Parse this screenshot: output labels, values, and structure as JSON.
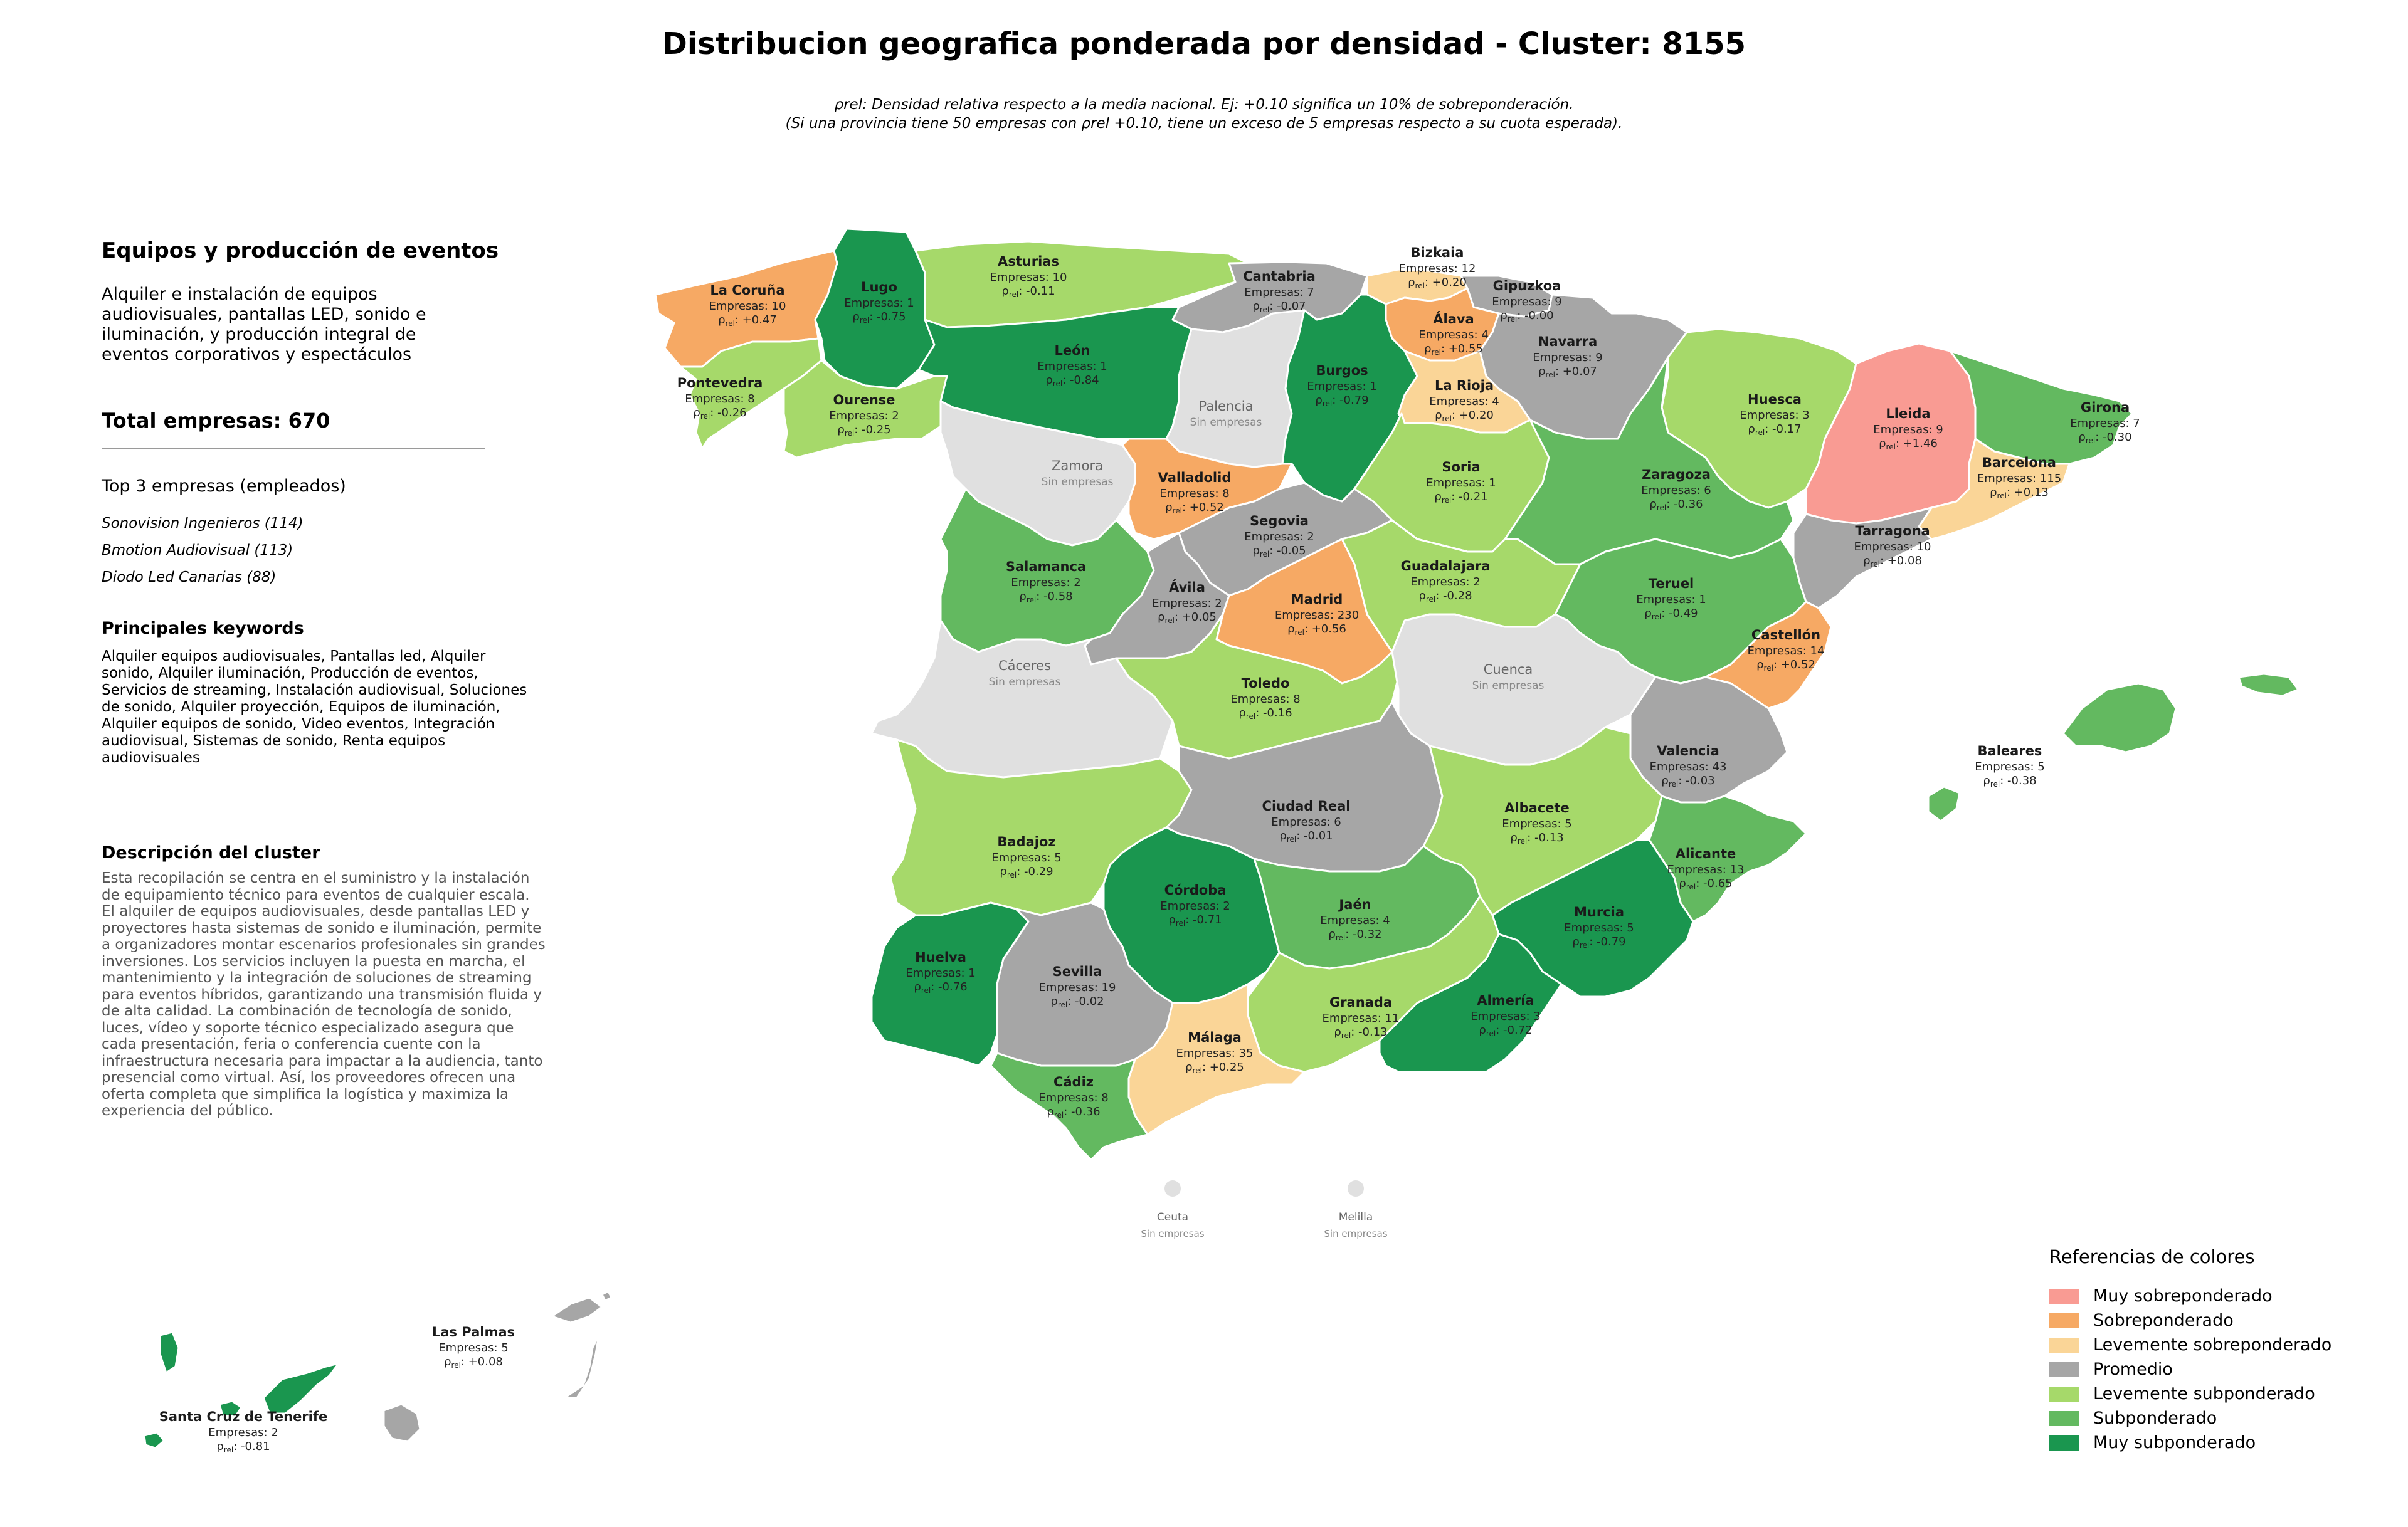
{
  "title": "Distribucion geografica ponderada por densidad - Cluster: 8155",
  "subtitle": {
    "line1": "ρrel: Densidad relativa respecto a la media nacional. Ej: +0.10 significa un 10% de sobreponderación.",
    "line2": "(Si una provincia tiene 50 empresas con ρrel +0.10, tiene un exceso de 5 empresas respecto a su cuota esperada)."
  },
  "panel": {
    "cluster_name": "Equipos y producción de eventos",
    "cluster_summary": "Alquiler e instalación de equipos audiovisuales, pantallas LED, sonido e iluminación, y producción integral de eventos corporativos y espectáculos",
    "total_label": "Total empresas: 670",
    "top_title": "Top 3 empresas (empleados)",
    "top_companies": [
      "Sonovision Ingenieros (114)",
      "Bmotion Audiovisual (113)",
      "Diodo Led Canarias (88)"
    ],
    "keywords_title": "Principales keywords",
    "keywords": "Alquiler equipos audiovisuales, Pantallas led, Alquiler sonido, Alquiler iluminación, Producción de eventos, Servicios de streaming, Instalación audiovisual, Soluciones de sonido, Alquiler proyección, Equipos de iluminación, Alquiler equipos de sonido, Video eventos, Integración audiovisual, Sistemas de sonido, Renta equipos audiovisuales",
    "description_title": "Descripción del cluster",
    "description": "Esta recopilación se centra en el suministro y la instalación de equipamiento técnico para eventos de cualquier escala. El alquiler de equipos audiovisuales, desde pantallas LED y proyectores hasta sistemas de sonido e iluminación, permite a organizadores montar escenarios profesionales sin grandes inversiones. Los servicios incluyen la puesta en marcha, el mantenimiento y la integración de soluciones de streaming para eventos híbridos, garantizando una transmisión fluida y de alta calidad. La combinación de tecnología de sonido, luces, vídeo y soporte técnico especializado asegura que cada presentación, feria o conferencia cuente con la infraestructura necesaria para impactar a la audiencia, tanto presencial como virtual. Así, los proveedores ofrecen una oferta completa que simplifica la logística y maximiza la experiencia del público."
  },
  "colors": {
    "muy_sobre": "#f99b93",
    "sobre": "#f6a964",
    "lev_sobre": "#fad597",
    "promedio": "#a6a6a6",
    "lev_sub": "#a6d96a",
    "sub": "#63b960",
    "muy_sub": "#1a964f",
    "sin_datos": "#e0e0e0"
  },
  "legend": {
    "title": "Referencias de colores",
    "items": [
      {
        "label": "Muy sobreponderado",
        "key": "muy_sobre"
      },
      {
        "label": "Sobreponderado",
        "key": "sobre"
      },
      {
        "label": "Levemente sobreponderado",
        "key": "lev_sobre"
      },
      {
        "label": "Promedio",
        "key": "promedio"
      },
      {
        "label": "Levemente subponderado",
        "key": "lev_sub"
      },
      {
        "label": "Subponderado",
        "key": "sub"
      },
      {
        "label": "Muy subponderado",
        "key": "muy_sub"
      }
    ]
  },
  "provinces": [
    {
      "name": "La Coruña",
      "empresas": "Empresas: 10",
      "rho": "+0.47",
      "cat": "sobre"
    },
    {
      "name": "Lugo",
      "empresas": "Empresas: 1",
      "rho": "-0.75",
      "cat": "muy_sub"
    },
    {
      "name": "Asturias",
      "empresas": "Empresas: 10",
      "rho": "-0.11",
      "cat": "lev_sub"
    },
    {
      "name": "Cantabria",
      "empresas": "Empresas: 7",
      "rho": "-0.07",
      "cat": "promedio"
    },
    {
      "name": "Bizkaia",
      "empresas": "Empresas: 12",
      "rho": "+0.20",
      "cat": "lev_sobre"
    },
    {
      "name": "Gipuzkoa",
      "empresas": "Empresas: 9",
      "rho": "-0.00",
      "cat": "promedio"
    },
    {
      "name": "Álava",
      "empresas": "Empresas: 4",
      "rho": "+0.55",
      "cat": "sobre"
    },
    {
      "name": "Navarra",
      "empresas": "Empresas: 9",
      "rho": "+0.07",
      "cat": "promedio"
    },
    {
      "name": "Pontevedra",
      "empresas": "Empresas: 8",
      "rho": "-0.26",
      "cat": "lev_sub"
    },
    {
      "name": "Ourense",
      "empresas": "Empresas: 2",
      "rho": "-0.25",
      "cat": "lev_sub"
    },
    {
      "name": "León",
      "empresas": "Empresas: 1",
      "rho": "-0.84",
      "cat": "muy_sub"
    },
    {
      "name": "Palencia",
      "empresas": "Sin empresas",
      "rho": "",
      "cat": "sin_datos"
    },
    {
      "name": "Burgos",
      "empresas": "Empresas: 1",
      "rho": "-0.79",
      "cat": "muy_sub"
    },
    {
      "name": "La Rioja",
      "empresas": "Empresas: 4",
      "rho": "+0.20",
      "cat": "lev_sobre"
    },
    {
      "name": "Huesca",
      "empresas": "Empresas: 3",
      "rho": "-0.17",
      "cat": "lev_sub"
    },
    {
      "name": "Lleida",
      "empresas": "Empresas: 9",
      "rho": "+1.46",
      "cat": "muy_sobre"
    },
    {
      "name": "Girona",
      "empresas": "Empresas: 7",
      "rho": "-0.30",
      "cat": "sub"
    },
    {
      "name": "Barcelona",
      "empresas": "Empresas: 115",
      "rho": "+0.13",
      "cat": "lev_sobre"
    },
    {
      "name": "Zamora",
      "empresas": "Sin empresas",
      "rho": "",
      "cat": "sin_datos"
    },
    {
      "name": "Valladolid",
      "empresas": "Empresas: 8",
      "rho": "+0.52",
      "cat": "sobre"
    },
    {
      "name": "Soria",
      "empresas": "Empresas: 1",
      "rho": "-0.21",
      "cat": "lev_sub"
    },
    {
      "name": "Zaragoza",
      "empresas": "Empresas: 6",
      "rho": "-0.36",
      "cat": "sub"
    },
    {
      "name": "Tarragona",
      "empresas": "Empresas: 10",
      "rho": "+0.08",
      "cat": "promedio"
    },
    {
      "name": "Salamanca",
      "empresas": "Empresas: 2",
      "rho": "-0.58",
      "cat": "sub"
    },
    {
      "name": "Segovia",
      "empresas": "Empresas: 2",
      "rho": "-0.05",
      "cat": "promedio"
    },
    {
      "name": "Ávila",
      "empresas": "Empresas: 2",
      "rho": "+0.05",
      "cat": "promedio"
    },
    {
      "name": "Madrid",
      "empresas": "Empresas: 230",
      "rho": "+0.56",
      "cat": "sobre"
    },
    {
      "name": "Guadalajara",
      "empresas": "Empresas: 2",
      "rho": "-0.28",
      "cat": "lev_sub"
    },
    {
      "name": "Teruel",
      "empresas": "Empresas: 1",
      "rho": "-0.49",
      "cat": "sub"
    },
    {
      "name": "Castellón",
      "empresas": "Empresas: 14",
      "rho": "+0.52",
      "cat": "sobre"
    },
    {
      "name": "Cáceres",
      "empresas": "Sin empresas",
      "rho": "",
      "cat": "sin_datos"
    },
    {
      "name": "Toledo",
      "empresas": "Empresas: 8",
      "rho": "-0.16",
      "cat": "lev_sub"
    },
    {
      "name": "Cuenca",
      "empresas": "Sin empresas",
      "rho": "",
      "cat": "sin_datos"
    },
    {
      "name": "Valencia",
      "empresas": "Empresas: 43",
      "rho": "-0.03",
      "cat": "promedio"
    },
    {
      "name": "Baleares",
      "empresas": "Empresas: 5",
      "rho": "-0.38",
      "cat": "sub"
    },
    {
      "name": "Badajoz",
      "empresas": "Empresas: 5",
      "rho": "-0.29",
      "cat": "lev_sub"
    },
    {
      "name": "Ciudad Real",
      "empresas": "Empresas: 6",
      "rho": "-0.01",
      "cat": "promedio"
    },
    {
      "name": "Albacete",
      "empresas": "Empresas: 5",
      "rho": "-0.13",
      "cat": "lev_sub"
    },
    {
      "name": "Alicante",
      "empresas": "Empresas: 13",
      "rho": "-0.65",
      "cat": "sub"
    },
    {
      "name": "Córdoba",
      "empresas": "Empresas: 2",
      "rho": "-0.71",
      "cat": "muy_sub"
    },
    {
      "name": "Jaén",
      "empresas": "Empresas: 4",
      "rho": "-0.32",
      "cat": "sub"
    },
    {
      "name": "Murcia",
      "empresas": "Empresas: 5",
      "rho": "-0.79",
      "cat": "muy_sub"
    },
    {
      "name": "Huelva",
      "empresas": "Empresas: 1",
      "rho": "-0.76",
      "cat": "muy_sub"
    },
    {
      "name": "Sevilla",
      "empresas": "Empresas: 19",
      "rho": "-0.02",
      "cat": "promedio"
    },
    {
      "name": "Granada",
      "empresas": "Empresas: 11",
      "rho": "-0.13",
      "cat": "lev_sub"
    },
    {
      "name": "Almería",
      "empresas": "Empresas: 3",
      "rho": "-0.72",
      "cat": "muy_sub"
    },
    {
      "name": "Málaga",
      "empresas": "Empresas: 35",
      "rho": "+0.25",
      "cat": "lev_sobre"
    },
    {
      "name": "Cádiz",
      "empresas": "Empresas: 8",
      "rho": "-0.36",
      "cat": "sub"
    },
    {
      "name": "Ceuta",
      "empresas": "Sin empresas",
      "rho": "",
      "cat": "sin_datos"
    },
    {
      "name": "Melilla",
      "empresas": "Sin empresas",
      "rho": "",
      "cat": "sin_datos"
    },
    {
      "name": "Las Palmas",
      "empresas": "Empresas: 5",
      "rho": "+0.08",
      "cat": "promedio"
    },
    {
      "name": "Santa Cruz de Tenerife",
      "empresas": "Empresas: 2",
      "rho": "-0.81",
      "cat": "muy_sub"
    }
  ]
}
